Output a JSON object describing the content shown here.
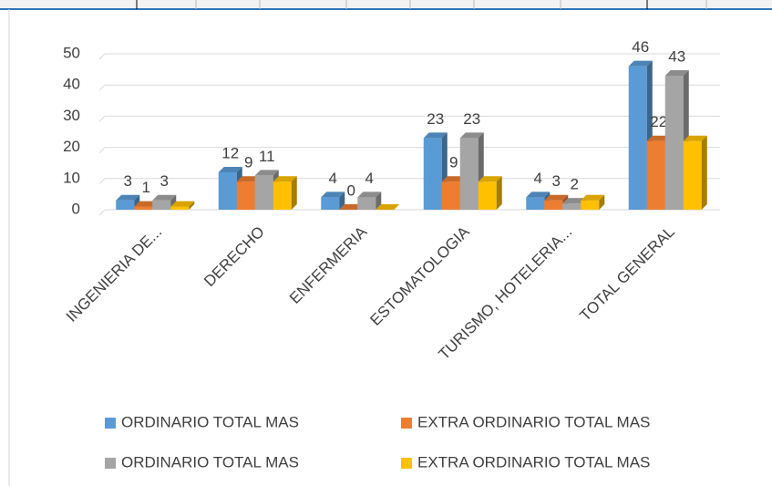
{
  "chart_data": {
    "type": "bar3d",
    "categories": [
      "INGENIERIA DE...",
      "DERECHO",
      "ENFERMERIA",
      "ESTOMATOLOGIA",
      "TURISMO, HOTELERIA...",
      "TOTAL GENERAL"
    ],
    "series": [
      {
        "name": "ORDINARIO TOTAL MAS",
        "color": "#5b9bd5",
        "values": [
          3,
          12,
          4,
          23,
          4,
          46
        ],
        "show_labels": true
      },
      {
        "name": "EXTRA ORDINARIO TOTAL MAS",
        "color": "#ed7d31",
        "values": [
          1,
          9,
          0,
          9,
          3,
          22
        ],
        "show_labels": true
      },
      {
        "name": "ORDINARIO TOTAL MAS",
        "color": "#a5a5a5",
        "values": [
          3,
          11,
          4,
          23,
          2,
          43
        ],
        "show_labels": true
      },
      {
        "name": "EXTRA ORDINARIO TOTAL MAS",
        "color": "#ffc000",
        "values": [
          1,
          9,
          0,
          9,
          3,
          22
        ],
        "show_labels": false
      }
    ],
    "ylim": [
      0,
      50
    ],
    "yticks": [
      0,
      10,
      20,
      30,
      40,
      50
    ],
    "grid": true,
    "legend": "bottom"
  }
}
